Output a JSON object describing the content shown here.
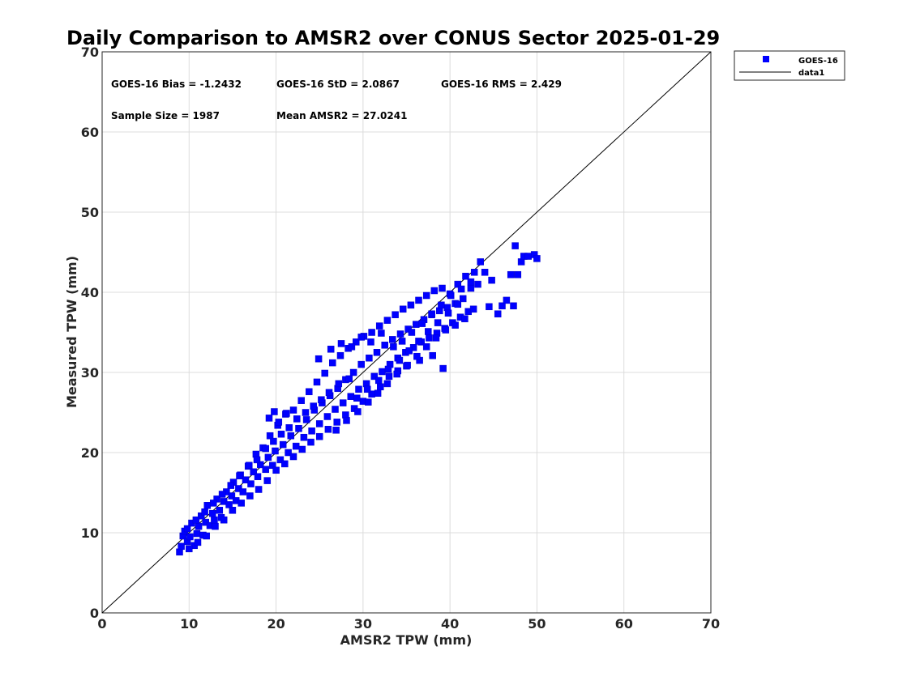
{
  "chart_data": {
    "type": "scatter",
    "title": "Daily Comparison to AMSR2 over CONUS Sector 2025-01-29",
    "xlabel": "AMSR2 TPW (mm)",
    "ylabel": "Measured TPW (mm)",
    "xlim": [
      0,
      70
    ],
    "ylim": [
      0,
      70
    ],
    "xticks": [
      "0",
      "10",
      "20",
      "30",
      "40",
      "50",
      "60",
      "70"
    ],
    "yticks": [
      "0",
      "10",
      "20",
      "30",
      "40",
      "50",
      "60",
      "70"
    ],
    "grid": true,
    "legend_position": "outside-top-right",
    "stats": {
      "bias": "GOES-16 Bias = -1.2432",
      "std": "GOES-16 StD = 2.0867",
      "rms": "GOES-16 RMS = 2.429",
      "sample_size": "Sample Size = 1987",
      "mean": "Mean AMSR2 = 27.0241"
    },
    "series": [
      {
        "name": "GOES-16",
        "marker": "square",
        "color": "#0000ff",
        "points": [
          [
            8.9,
            7.6
          ],
          [
            9.1,
            8.3
          ],
          [
            9.3,
            9.6
          ],
          [
            9.5,
            10.2
          ],
          [
            9.8,
            8.9
          ],
          [
            10.1,
            9.5
          ],
          [
            10.3,
            11.2
          ],
          [
            10.6,
            8.4
          ],
          [
            10.9,
            9.9
          ],
          [
            11.1,
            10.8
          ],
          [
            11.4,
            12.1
          ],
          [
            11.6,
            9.7
          ],
          [
            11.9,
            11.3
          ],
          [
            12.1,
            13.4
          ],
          [
            12.4,
            10.9
          ],
          [
            12.7,
            12.4
          ],
          [
            12.9,
            11.6
          ],
          [
            13.2,
            14.2
          ],
          [
            13.5,
            12.8
          ],
          [
            13.7,
            11.9
          ],
          [
            14.0,
            13.9
          ],
          [
            14.3,
            15.1
          ],
          [
            14.6,
            13.5
          ],
          [
            14.9,
            14.6
          ],
          [
            15.1,
            16.3
          ],
          [
            15.4,
            14.0
          ],
          [
            15.7,
            15.5
          ],
          [
            15.9,
            17.2
          ],
          [
            16.2,
            15.1
          ],
          [
            16.5,
            16.6
          ],
          [
            16.8,
            18.3
          ],
          [
            17.1,
            16.1
          ],
          [
            17.4,
            17.6
          ],
          [
            17.7,
            19.8
          ],
          [
            17.9,
            17.0
          ],
          [
            18.2,
            18.5
          ],
          [
            18.5,
            20.6
          ],
          [
            18.8,
            17.9
          ],
          [
            19.1,
            19.4
          ],
          [
            19.3,
            22.1
          ],
          [
            19.6,
            18.4
          ],
          [
            19.9,
            20.2
          ],
          [
            20.2,
            23.4
          ],
          [
            20.5,
            19.1
          ],
          [
            20.8,
            21.0
          ],
          [
            21.1,
            24.8
          ],
          [
            21.4,
            20.0
          ],
          [
            21.7,
            22.1
          ],
          [
            22.0,
            25.3
          ],
          [
            22.3,
            20.8
          ],
          [
            22.6,
            23.0
          ],
          [
            22.9,
            26.5
          ],
          [
            23.2,
            21.9
          ],
          [
            23.5,
            24.1
          ],
          [
            23.8,
            27.6
          ],
          [
            24.1,
            22.7
          ],
          [
            24.4,
            25.3
          ],
          [
            24.7,
            28.8
          ],
          [
            25.0,
            23.6
          ],
          [
            25.3,
            26.2
          ],
          [
            25.6,
            29.9
          ],
          [
            25.9,
            24.5
          ],
          [
            26.2,
            27.1
          ],
          [
            26.5,
            31.2
          ],
          [
            26.8,
            25.4
          ],
          [
            27.1,
            28.0
          ],
          [
            27.4,
            32.1
          ],
          [
            27.7,
            26.2
          ],
          [
            28.0,
            29.1
          ],
          [
            28.3,
            33.0
          ],
          [
            28.6,
            27.0
          ],
          [
            28.9,
            30.0
          ],
          [
            29.2,
            33.8
          ],
          [
            29.5,
            27.9
          ],
          [
            29.8,
            31.0
          ],
          [
            30.1,
            34.5
          ],
          [
            30.4,
            28.6
          ],
          [
            30.7,
            31.8
          ],
          [
            31.0,
            35.0
          ],
          [
            31.3,
            29.5
          ],
          [
            31.6,
            32.5
          ],
          [
            31.9,
            35.8
          ],
          [
            32.2,
            30.1
          ],
          [
            32.5,
            33.4
          ],
          [
            32.8,
            36.5
          ],
          [
            33.1,
            31.0
          ],
          [
            33.4,
            34.1
          ],
          [
            33.7,
            37.2
          ],
          [
            34.0,
            31.8
          ],
          [
            34.3,
            34.8
          ],
          [
            34.6,
            37.9
          ],
          [
            34.9,
            32.5
          ],
          [
            35.2,
            35.4
          ],
          [
            35.5,
            38.4
          ],
          [
            35.8,
            33.1
          ],
          [
            36.1,
            36.0
          ],
          [
            36.4,
            39.0
          ],
          [
            36.7,
            33.8
          ],
          [
            37.0,
            36.6
          ],
          [
            37.3,
            39.6
          ],
          [
            37.6,
            34.3
          ],
          [
            37.9,
            37.2
          ],
          [
            38.2,
            40.2
          ],
          [
            38.5,
            34.9
          ],
          [
            38.8,
            37.7
          ],
          [
            39.1,
            40.5
          ],
          [
            39.4,
            35.5
          ],
          [
            39.7,
            38.1
          ],
          [
            40.0,
            39.8
          ],
          [
            40.3,
            36.2
          ],
          [
            40.6,
            38.6
          ],
          [
            40.9,
            41.0
          ],
          [
            41.2,
            36.9
          ],
          [
            41.5,
            39.2
          ],
          [
            41.8,
            42.0
          ],
          [
            42.1,
            37.6
          ],
          [
            42.4,
            40.5
          ],
          [
            42.8,
            42.5
          ],
          [
            43.2,
            41.0
          ],
          [
            43.5,
            43.8
          ],
          [
            44.0,
            42.5
          ],
          [
            44.5,
            38.2
          ],
          [
            44.8,
            41.5
          ],
          [
            45.5,
            37.3
          ],
          [
            46.0,
            38.3
          ],
          [
            46.5,
            39.0
          ],
          [
            47.0,
            42.2
          ],
          [
            47.3,
            38.3
          ],
          [
            47.5,
            45.8
          ],
          [
            47.8,
            42.2
          ],
          [
            48.2,
            43.8
          ],
          [
            48.5,
            44.5
          ],
          [
            49.0,
            44.5
          ],
          [
            49.7,
            44.7
          ],
          [
            50.0,
            44.2
          ],
          [
            39.2,
            30.5
          ],
          [
            38.0,
            32.1
          ],
          [
            36.5,
            31.5
          ],
          [
            35.0,
            30.8
          ],
          [
            34.0,
            30.2
          ],
          [
            33.0,
            29.5
          ],
          [
            32.0,
            28.2
          ],
          [
            31.0,
            27.3
          ],
          [
            30.0,
            26.4
          ],
          [
            29.0,
            25.5
          ],
          [
            28.0,
            24.7
          ],
          [
            27.0,
            23.8
          ],
          [
            26.0,
            22.9
          ],
          [
            25.0,
            22.0
          ],
          [
            24.0,
            21.3
          ],
          [
            23.0,
            20.4
          ],
          [
            22.0,
            19.5
          ],
          [
            21.0,
            18.6
          ],
          [
            20.0,
            17.8
          ],
          [
            19.0,
            16.5
          ],
          [
            18.0,
            15.4
          ],
          [
            17.0,
            14.6
          ],
          [
            16.0,
            13.7
          ],
          [
            15.0,
            12.8
          ],
          [
            14.0,
            11.6
          ],
          [
            13.0,
            10.8
          ],
          [
            12.0,
            9.6
          ],
          [
            11.0,
            8.8
          ],
          [
            10.0,
            8.0
          ],
          [
            29.3,
            26.8
          ],
          [
            30.5,
            27.9
          ],
          [
            31.8,
            29.0
          ],
          [
            32.9,
            30.4
          ],
          [
            34.2,
            31.5
          ],
          [
            35.3,
            32.7
          ],
          [
            36.4,
            33.9
          ],
          [
            37.5,
            35.1
          ],
          [
            38.6,
            36.2
          ],
          [
            39.8,
            37.4
          ],
          [
            40.9,
            38.5
          ],
          [
            28.4,
            29.2
          ],
          [
            27.2,
            28.6
          ],
          [
            26.1,
            27.5
          ],
          [
            25.2,
            26.6
          ],
          [
            24.3,
            25.8
          ],
          [
            23.4,
            25.0
          ],
          [
            22.4,
            24.2
          ],
          [
            21.5,
            23.1
          ],
          [
            20.6,
            22.3
          ],
          [
            19.7,
            21.4
          ],
          [
            18.8,
            20.5
          ],
          [
            17.8,
            19.1
          ],
          [
            16.9,
            18.4
          ],
          [
            15.8,
            17.1
          ],
          [
            14.8,
            15.9
          ],
          [
            13.8,
            14.8
          ],
          [
            12.8,
            13.7
          ],
          [
            11.8,
            12.6
          ],
          [
            10.8,
            11.6
          ],
          [
            9.8,
            10.5
          ],
          [
            33.5,
            33.2
          ],
          [
            34.5,
            33.9
          ],
          [
            35.6,
            35.0
          ],
          [
            36.8,
            36.1
          ],
          [
            37.9,
            37.3
          ],
          [
            39.0,
            38.4
          ],
          [
            40.1,
            39.6
          ],
          [
            41.3,
            40.4
          ],
          [
            42.4,
            41.3
          ],
          [
            19.2,
            24.3
          ],
          [
            19.8,
            25.1
          ],
          [
            20.3,
            23.8
          ],
          [
            21.2,
            24.9
          ],
          [
            24.9,
            31.7
          ],
          [
            26.3,
            32.9
          ],
          [
            27.5,
            33.6
          ],
          [
            28.7,
            33.2
          ],
          [
            29.8,
            34.4
          ],
          [
            30.9,
            33.8
          ],
          [
            32.1,
            34.9
          ],
          [
            26.9,
            22.8
          ],
          [
            28.1,
            24.0
          ],
          [
            29.4,
            25.1
          ],
          [
            30.6,
            26.3
          ],
          [
            31.7,
            27.4
          ],
          [
            32.8,
            28.6
          ],
          [
            33.9,
            29.8
          ],
          [
            35.1,
            30.9
          ],
          [
            36.2,
            32.0
          ],
          [
            37.3,
            33.2
          ],
          [
            38.4,
            34.3
          ],
          [
            39.5,
            35.3
          ],
          [
            40.6,
            35.9
          ],
          [
            41.7,
            36.7
          ],
          [
            42.7,
            37.9
          ]
        ]
      },
      {
        "name": "data1",
        "type": "line",
        "color": "#000000",
        "x": [
          0,
          70
        ],
        "y": [
          0,
          70
        ]
      }
    ]
  }
}
